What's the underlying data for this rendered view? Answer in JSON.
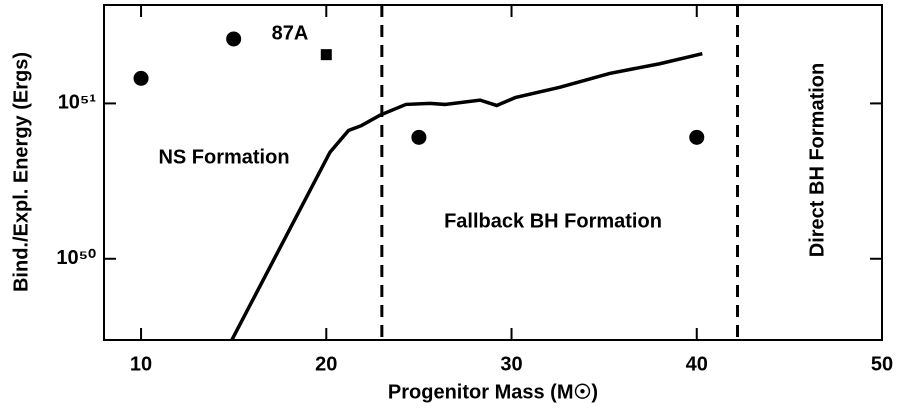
{
  "chart_data": {
    "type": "line",
    "xlabel": "Progenitor Mass (M☉)",
    "ylabel": "Bind./Expl. Energy (Ergs)",
    "xlim": [
      8,
      50
    ],
    "xticks": [
      10,
      20,
      30,
      40,
      50
    ],
    "ylim": [
      3e+49,
      4.3e+51
    ],
    "log_y": true,
    "yticks": [
      {
        "value": 1e+50,
        "label": "10⁵⁰"
      },
      {
        "value": 1e+51,
        "label": "10⁵¹"
      }
    ],
    "series": [
      {
        "color": "#000000",
        "x": [
          14.9,
          20.2,
          21.2,
          21.9,
          22.9,
          24.3,
          25.6,
          26.4,
          28.3,
          29.2,
          30.2,
          32.6,
          35.3,
          38.0,
          40.3
        ],
        "values": [
          3e+49,
          4.85e+50,
          6.7e+50,
          7.2e+50,
          8.4e+50,
          9.85e+50,
          1e+51,
          9.85e+50,
          1.05e+51,
          9.7e+50,
          1.09e+51,
          1.27e+51,
          1.56e+51,
          1.8e+51,
          2.09e+51
        ]
      },
      {
        "type": "scatter",
        "marker": "circle",
        "color": "#000000",
        "x": [
          10,
          15,
          25,
          40
        ],
        "values": [
          1.45e+51,
          2.6e+51,
          6.05e+50,
          6.05e+50
        ]
      },
      {
        "type": "scatter",
        "marker": "square",
        "color": "#000000",
        "x": [
          20
        ],
        "values": [
          2.06e+51
        ]
      }
    ],
    "vlines": [
      23,
      42.2
    ],
    "annotations": [
      "87A",
      "NS Formation",
      "Fallback BH Formation",
      "Direct BH Formation"
    ]
  }
}
